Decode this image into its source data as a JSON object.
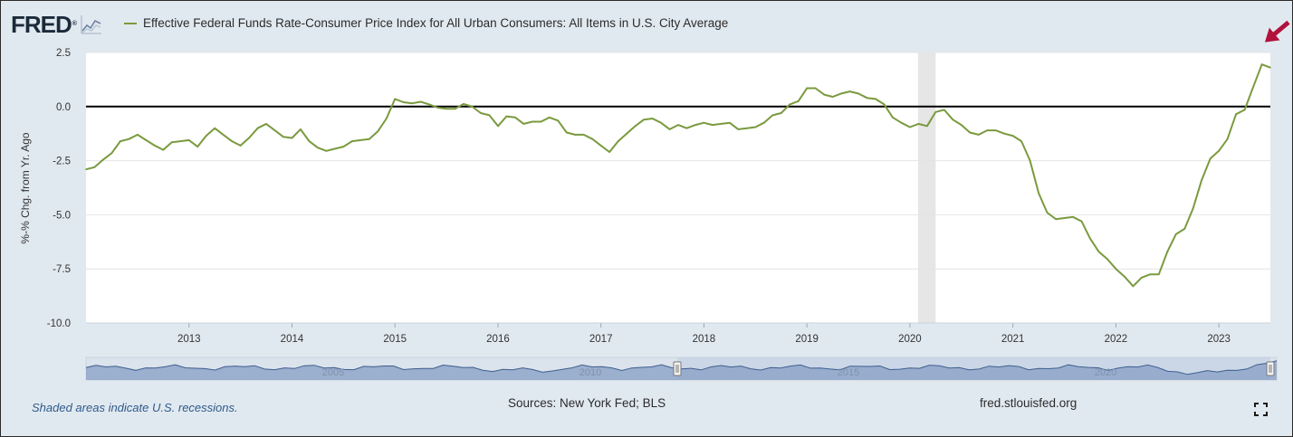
{
  "header": {
    "logo_text": "FRED",
    "logo_mark": "®",
    "series_title": "Effective Federal Funds Rate-Consumer Price Index for All Urban Consumers: All Items in U.S. City Average"
  },
  "footer": {
    "recession_note": "Shaded areas indicate U.S. recessions.",
    "sources": "Sources: New York Fed; BLS",
    "site": "fred.stlouisfed.org"
  },
  "colors": {
    "series": "#7a9a3e",
    "background": "#e1e9f0",
    "plot_background": "#ffffff",
    "recession": "#e6e6e6",
    "zero_line": "#000000",
    "navigator_fill": "#8fa6c9",
    "arrow": "#b0123c"
  },
  "icons": {
    "fullscreen": "fullscreen-icon",
    "logo_graph": "line-graph-icon",
    "annotation": "red-arrow-icon"
  },
  "chart_data": {
    "type": "line",
    "title": "Effective Federal Funds Rate-Consumer Price Index for All Urban Consumers: All Items in U.S. City Average",
    "xlabel": "",
    "ylabel": "%-% Chg. from Yr. Ago",
    "ylim": [
      -10.0,
      2.5
    ],
    "xlim": [
      2012.0,
      2023.5
    ],
    "y_ticks": [
      "2.5",
      "0.0",
      "-2.5",
      "-5.0",
      "-7.5",
      "-10.0"
    ],
    "y_tick_values": [
      2.5,
      0.0,
      -2.5,
      -5.0,
      -7.5,
      -10.0
    ],
    "x_ticks": [
      "2013",
      "2014",
      "2015",
      "2016",
      "2017",
      "2018",
      "2019",
      "2020",
      "2021",
      "2022",
      "2023"
    ],
    "x_tick_values": [
      2013,
      2014,
      2015,
      2016,
      2017,
      2018,
      2019,
      2020,
      2021,
      2022,
      2023
    ],
    "grid": true,
    "zero_line": 0.0,
    "recessions": [
      [
        2020.08,
        2020.25
      ]
    ],
    "series": [
      {
        "name": "Effective Federal Funds Rate-Consumer Price Index for All Urban Consumers: All Items in U.S. City Average",
        "x": [
          2012.0,
          2012.083,
          2012.167,
          2012.25,
          2012.333,
          2012.417,
          2012.5,
          2012.583,
          2012.667,
          2012.75,
          2012.833,
          2012.917,
          2013.0,
          2013.083,
          2013.167,
          2013.25,
          2013.333,
          2013.417,
          2013.5,
          2013.583,
          2013.667,
          2013.75,
          2013.833,
          2013.917,
          2014.0,
          2014.083,
          2014.167,
          2014.25,
          2014.333,
          2014.417,
          2014.5,
          2014.583,
          2014.667,
          2014.75,
          2014.833,
          2014.917,
          2015.0,
          2015.083,
          2015.167,
          2015.25,
          2015.333,
          2015.417,
          2015.5,
          2015.583,
          2015.667,
          2015.75,
          2015.833,
          2015.917,
          2016.0,
          2016.083,
          2016.167,
          2016.25,
          2016.333,
          2016.417,
          2016.5,
          2016.583,
          2016.667,
          2016.75,
          2016.833,
          2016.917,
          2017.0,
          2017.083,
          2017.167,
          2017.25,
          2017.333,
          2017.417,
          2017.5,
          2017.583,
          2017.667,
          2017.75,
          2017.833,
          2017.917,
          2018.0,
          2018.083,
          2018.167,
          2018.25,
          2018.333,
          2018.417,
          2018.5,
          2018.583,
          2018.667,
          2018.75,
          2018.833,
          2018.917,
          2019.0,
          2019.083,
          2019.167,
          2019.25,
          2019.333,
          2019.417,
          2019.5,
          2019.583,
          2019.667,
          2019.75,
          2019.833,
          2019.917,
          2020.0,
          2020.083,
          2020.167,
          2020.25,
          2020.333,
          2020.417,
          2020.5,
          2020.583,
          2020.667,
          2020.75,
          2020.833,
          2020.917,
          2021.0,
          2021.083,
          2021.167,
          2021.25,
          2021.333,
          2021.417,
          2021.5,
          2021.583,
          2021.667,
          2021.75,
          2021.833,
          2021.917,
          2022.0,
          2022.083,
          2022.167,
          2022.25,
          2022.333,
          2022.417,
          2022.5,
          2022.583,
          2022.667,
          2022.75,
          2022.833,
          2022.917,
          2023.0,
          2023.083,
          2023.167,
          2023.25,
          2023.333,
          2023.417,
          2023.5
        ],
        "values": [
          -2.9,
          -2.8,
          -2.45,
          -2.15,
          -1.6,
          -1.5,
          -1.3,
          -1.55,
          -1.8,
          -2.0,
          -1.65,
          -1.6,
          -1.55,
          -1.85,
          -1.35,
          -1.0,
          -1.3,
          -1.6,
          -1.8,
          -1.45,
          -1.0,
          -0.8,
          -1.1,
          -1.4,
          -1.45,
          -1.05,
          -1.6,
          -1.9,
          -2.05,
          -1.95,
          -1.85,
          -1.6,
          -1.55,
          -1.5,
          -1.15,
          -0.55,
          0.35,
          0.2,
          0.15,
          0.22,
          0.1,
          -0.05,
          -0.1,
          -0.1,
          0.12,
          0.0,
          -0.3,
          -0.4,
          -0.9,
          -0.45,
          -0.5,
          -0.8,
          -0.7,
          -0.7,
          -0.5,
          -0.65,
          -1.2,
          -1.3,
          -1.3,
          -1.5,
          -1.8,
          -2.1,
          -1.6,
          -1.25,
          -0.9,
          -0.6,
          -0.55,
          -0.75,
          -1.05,
          -0.85,
          -1.0,
          -0.85,
          -0.75,
          -0.85,
          -0.8,
          -0.75,
          -1.05,
          -1.0,
          -0.95,
          -0.75,
          -0.4,
          -0.3,
          0.1,
          0.25,
          0.85,
          0.85,
          0.55,
          0.45,
          0.6,
          0.7,
          0.6,
          0.4,
          0.35,
          0.1,
          -0.5,
          -0.75,
          -0.95,
          -0.8,
          -0.9,
          -0.25,
          -0.15,
          -0.6,
          -0.85,
          -1.2,
          -1.3,
          -1.1,
          -1.1,
          -1.25,
          -1.35,
          -1.6,
          -2.5,
          -4.0,
          -4.9,
          -5.2,
          -5.15,
          -5.1,
          -5.3,
          -6.1,
          -6.7,
          -7.05,
          -7.5,
          -7.85,
          -8.3,
          -7.9,
          -7.75,
          -7.75,
          -6.7,
          -5.9,
          -5.65,
          -4.7,
          -3.4,
          -2.4,
          -2.05,
          -1.5,
          -0.35,
          -0.15,
          0.9,
          1.95,
          1.8
        ]
      }
    ]
  }
}
